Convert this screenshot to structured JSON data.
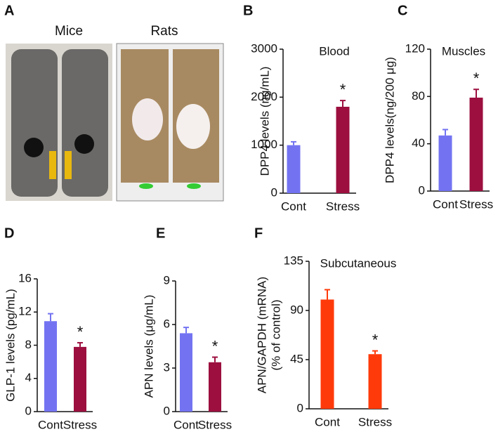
{
  "figure": {
    "panel_label": "A",
    "photo_labels": [
      "Mice",
      "Rats"
    ]
  },
  "chart_data": [
    {
      "type": "bar",
      "panel": "B",
      "annotation": "Blood",
      "ylabel": [
        "DPP4 levels (ng/mL)"
      ],
      "categories": [
        "Cont",
        "Stress"
      ],
      "values": [
        1000,
        1800
      ],
      "errors": [
        70,
        130
      ],
      "colors": [
        "#7373f2",
        "#9c0f3f"
      ],
      "markers": [
        null,
        "*"
      ],
      "ylim": [
        0,
        3000
      ],
      "yticks": [
        0,
        1000,
        2000,
        3000
      ]
    },
    {
      "type": "bar",
      "panel": "C",
      "annotation": "Muscles",
      "ylabel": [
        "DPP4 levels(ng/200 μg)"
      ],
      "categories": [
        "Cont",
        "Stress"
      ],
      "values": [
        47,
        79
      ],
      "errors": [
        5,
        7
      ],
      "colors": [
        "#7373f2",
        "#9c0f3f"
      ],
      "markers": [
        null,
        "*"
      ],
      "ylim": [
        0,
        120
      ],
      "yticks": [
        0,
        40,
        80,
        120
      ]
    },
    {
      "type": "bar",
      "panel": "D",
      "ylabel": [
        "GLP-1 levels (pg/mL)"
      ],
      "categories": [
        "Cont",
        "Stress"
      ],
      "values": [
        10.9,
        7.8
      ],
      "errors": [
        0.9,
        0.5
      ],
      "colors": [
        "#7373f2",
        "#9c0f3f"
      ],
      "markers": [
        null,
        "*"
      ],
      "ylim": [
        0,
        16
      ],
      "yticks": [
        0,
        4,
        8,
        12,
        16
      ]
    },
    {
      "type": "bar",
      "panel": "E",
      "ylabel": [
        "APN levels (μg/mL)"
      ],
      "categories": [
        "Cont",
        "Stress"
      ],
      "values": [
        5.4,
        3.4
      ],
      "errors": [
        0.4,
        0.35
      ],
      "colors": [
        "#7373f2",
        "#9c0f3f"
      ],
      "markers": [
        null,
        "*"
      ],
      "ylim": [
        0,
        9
      ],
      "yticks": [
        0,
        3,
        6,
        9
      ]
    },
    {
      "type": "bar",
      "panel": "F",
      "annotation": "Subcutaneous",
      "ylabel": [
        "APN/GAPDH (mRNA)",
        "(% of control)"
      ],
      "categories": [
        "Cont",
        "Stress"
      ],
      "values": [
        100,
        50
      ],
      "errors": [
        9,
        3
      ],
      "colors": [
        "#ff3a0a",
        "#ff3a0a"
      ],
      "markers": [
        null,
        "*"
      ],
      "ylim": [
        0,
        135
      ],
      "yticks": [
        0,
        45,
        90,
        135
      ]
    }
  ]
}
